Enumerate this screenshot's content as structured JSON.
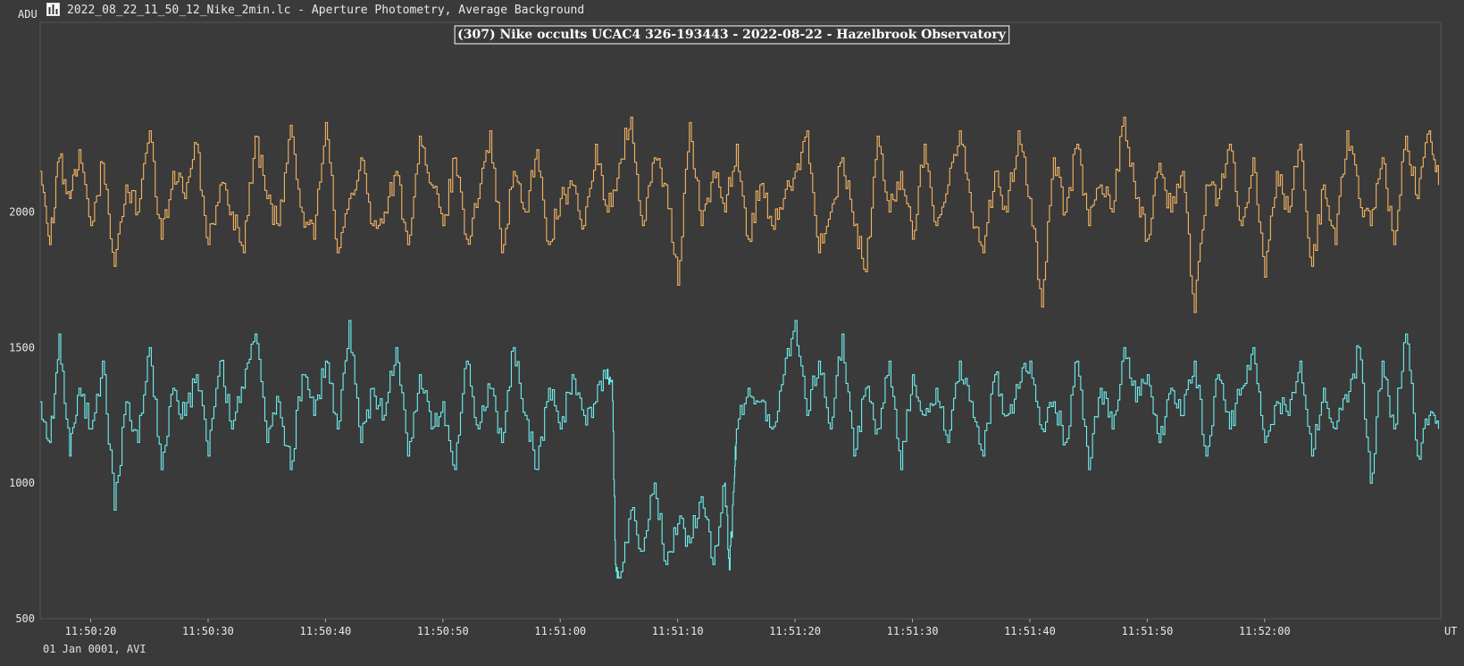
{
  "window": {
    "title": "2022_08_22_11_50_12_Nike_2min.lc - Aperture Photometry, Average Background",
    "date_label": "01 Jan 0001, AVI"
  },
  "chart_data": {
    "type": "line",
    "title": "(307) Nike occults UCAC4 326-193443 - 2022-08-22 - Hazelbrook Observatory",
    "ylabel": "ADU",
    "xlabel": "UT",
    "ylim": [
      500,
      2700
    ],
    "xlim": [
      15.7,
      135.0
    ],
    "x_unit": "seconds after 11:50:00 UT",
    "y_ticks": [
      500,
      1000,
      1500,
      2000
    ],
    "x_ticks": [
      {
        "t": 20,
        "label": "11:50:20"
      },
      {
        "t": 30,
        "label": "11:50:30"
      },
      {
        "t": 40,
        "label": "11:50:40"
      },
      {
        "t": 50,
        "label": "11:50:50"
      },
      {
        "t": 60,
        "label": "11:51:00"
      },
      {
        "t": 70,
        "label": "11:51:10"
      },
      {
        "t": 80,
        "label": "11:51:20"
      },
      {
        "t": 90,
        "label": "11:51:30"
      },
      {
        "t": 100,
        "label": "11:51:40"
      },
      {
        "t": 110,
        "label": "11:51:50"
      },
      {
        "t": 120,
        "label": "11:52:00"
      }
    ],
    "grid": true,
    "series": [
      {
        "color": "#f5b461",
        "x": [
          15.7,
          16.5,
          17.3,
          18.2,
          19.0,
          20.0,
          21.0,
          22.0,
          23.0,
          24.0,
          25.0,
          26.0,
          27.0,
          28.0,
          29.0,
          30.0,
          31.0,
          32.0,
          33.0,
          34.0,
          35.0,
          36.0,
          37.0,
          38.0,
          39.0,
          40.0,
          41.0,
          42.0,
          43.0,
          44.0,
          45.0,
          46.0,
          47.0,
          48.0,
          49.0,
          50.0,
          51.0,
          52.0,
          53.0,
          54.0,
          55.0,
          56.0,
          57.0,
          58.0,
          59.0,
          60.0,
          61.0,
          62.0,
          63.0,
          64.0,
          65.0,
          66.0,
          67.0,
          68.0,
          69.0,
          70.0,
          71.0,
          72.0,
          73.0,
          74.0,
          75.0,
          76.0,
          77.0,
          78.0,
          79.0,
          80.0,
          81.0,
          82.0,
          83.0,
          84.0,
          85.0,
          86.0,
          87.0,
          88.0,
          89.0,
          90.0,
          91.0,
          92.0,
          93.0,
          94.0,
          95.0,
          96.0,
          97.0,
          98.0,
          99.0,
          100.0,
          101.0,
          102.0,
          103.0,
          104.0,
          105.0,
          106.0,
          107.0,
          108.0,
          109.0,
          110.0,
          111.0,
          112.0,
          113.0,
          114.0,
          115.0,
          116.0,
          117.0,
          118.0,
          119.0,
          120.0,
          121.0,
          122.0,
          123.0,
          124.0,
          125.0,
          126.0,
          127.0,
          128.0,
          129.0,
          130.0,
          131.0,
          132.0,
          133.0,
          134.0,
          134.8
        ],
        "y": [
          2150,
          1880,
          2200,
          2050,
          2230,
          1950,
          2180,
          1800,
          2100,
          2000,
          2300,
          1900,
          2150,
          2050,
          2250,
          1880,
          2100,
          2000,
          1850,
          2280,
          2050,
          1950,
          2320,
          2000,
          1900,
          2330,
          1850,
          2050,
          2200,
          1950,
          2000,
          2150,
          1880,
          2280,
          2100,
          1950,
          2200,
          1900,
          2050,
          2300,
          1850,
          2150,
          2000,
          2230,
          1880,
          2050,
          2100,
          1950,
          2250,
          2000,
          2180,
          2350,
          1950,
          2200,
          2100,
          1730,
          2330,
          1950,
          2150,
          2000,
          2250,
          1900,
          2100,
          1950,
          2050,
          2150,
          2300,
          1850,
          2000,
          2200,
          1950,
          1780,
          2280,
          2000,
          2150,
          1900,
          2250,
          1950,
          2100,
          2300,
          2000,
          1850,
          2150,
          2000,
          2300,
          2050,
          1650,
          2200,
          2000,
          2250,
          1950,
          2100,
          2000,
          2350,
          2050,
          1900,
          2180,
          2000,
          2150,
          1630,
          2100,
          2050,
          2250,
          1950,
          2200,
          1760,
          2150,
          2000,
          2250,
          1800,
          2100,
          1880,
          2300,
          2050,
          1950,
          2200,
          1880,
          2280,
          2050,
          2300,
          2100
        ]
      },
      {
        "color": "#6ff0ef",
        "x": [
          15.7,
          16.5,
          17.3,
          18.2,
          19.0,
          20.0,
          21.0,
          22.0,
          23.0,
          24.0,
          25.0,
          26.0,
          27.0,
          28.0,
          29.0,
          30.0,
          31.0,
          32.0,
          33.0,
          34.0,
          35.0,
          36.0,
          37.0,
          38.0,
          39.0,
          40.0,
          41.0,
          42.0,
          43.0,
          44.0,
          45.0,
          46.0,
          47.0,
          48.0,
          49.0,
          50.0,
          51.0,
          52.0,
          53.0,
          54.0,
          55.0,
          56.0,
          57.0,
          58.0,
          59.0,
          60.0,
          61.0,
          62.0,
          63.0,
          64.0,
          64.4,
          64.7,
          65.0,
          66.0,
          67.0,
          68.0,
          69.0,
          70.0,
          71.0,
          72.0,
          73.0,
          74.0,
          74.4,
          74.8,
          75.0,
          76.0,
          77.0,
          78.0,
          79.0,
          80.0,
          81.0,
          82.0,
          83.0,
          84.0,
          85.0,
          86.0,
          87.0,
          88.0,
          89.0,
          90.0,
          91.0,
          92.0,
          93.0,
          94.0,
          95.0,
          96.0,
          97.0,
          98.0,
          99.0,
          100.0,
          101.0,
          102.0,
          103.0,
          104.0,
          105.0,
          106.0,
          107.0,
          108.0,
          109.0,
          110.0,
          111.0,
          112.0,
          113.0,
          114.0,
          115.0,
          116.0,
          117.0,
          118.0,
          119.0,
          120.0,
          121.0,
          122.0,
          123.0,
          124.0,
          125.0,
          126.0,
          127.0,
          128.0,
          129.0,
          130.0,
          131.0,
          132.0,
          133.0,
          134.0,
          134.8
        ],
        "y": [
          1300,
          1150,
          1550,
          1100,
          1350,
          1200,
          1450,
          900,
          1300,
          1150,
          1500,
          1050,
          1350,
          1250,
          1400,
          1100,
          1450,
          1200,
          1350,
          1550,
          1150,
          1300,
          1050,
          1400,
          1250,
          1450,
          1200,
          1600,
          1150,
          1350,
          1250,
          1500,
          1100,
          1400,
          1200,
          1300,
          1050,
          1450,
          1200,
          1350,
          1150,
          1500,
          1250,
          1050,
          1350,
          1200,
          1400,
          1250,
          1300,
          1420,
          1380,
          700,
          650,
          900,
          750,
          1000,
          700,
          850,
          780,
          950,
          700,
          1000,
          680,
          1000,
          1200,
          1350,
          1300,
          1200,
          1400,
          1600,
          1250,
          1450,
          1200,
          1550,
          1100,
          1350,
          1200,
          1450,
          1050,
          1400,
          1250,
          1350,
          1150,
          1450,
          1300,
          1100,
          1400,
          1250,
          1350,
          1450,
          1200,
          1300,
          1150,
          1450,
          1050,
          1350,
          1200,
          1500,
          1300,
          1400,
          1150,
          1350,
          1250,
          1450,
          1100,
          1400,
          1200,
          1350,
          1500,
          1150,
          1300,
          1250,
          1450,
          1100,
          1350,
          1200,
          1300,
          1500,
          1000,
          1450,
          1200,
          1550,
          1100,
          1250,
          1200
        ]
      }
    ]
  }
}
